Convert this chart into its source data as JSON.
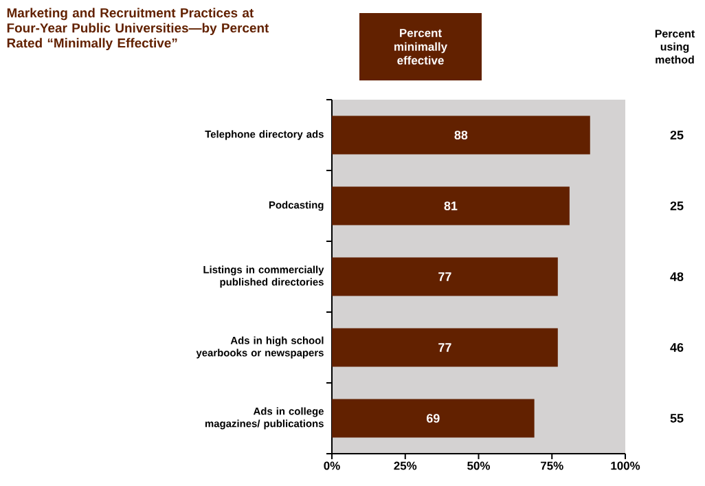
{
  "chart_data": {
    "type": "bar",
    "orientation": "horizontal",
    "title": "Marketing and Recruitment Practices at Four-Year Public Universities—by Percent Rated “Minimally Effective”",
    "categories": [
      "Telephone directory ads",
      "Podcasting",
      "Listings in commercially published directories",
      "Ads in high school yearbooks or newspapers",
      "Ads in college magazines/ publications"
    ],
    "series": [
      {
        "name": "Percent minimally effective",
        "color": "#622100",
        "values": [
          88,
          81,
          77,
          77,
          69
        ]
      }
    ],
    "data_labels": true,
    "legend": "top",
    "xlim": [
      0,
      100
    ],
    "xticks": [
      {
        "value": 0,
        "label": "0%"
      },
      {
        "value": 25,
        "label": "25%"
      },
      {
        "value": 50,
        "label": "50%"
      },
      {
        "value": 75,
        "label": "75%"
      },
      {
        "value": 100,
        "label": "100%"
      }
    ],
    "grid": false,
    "annotations": [
      "Percent using method",
      "25",
      "25",
      "48",
      "46",
      "55"
    ]
  }
}
